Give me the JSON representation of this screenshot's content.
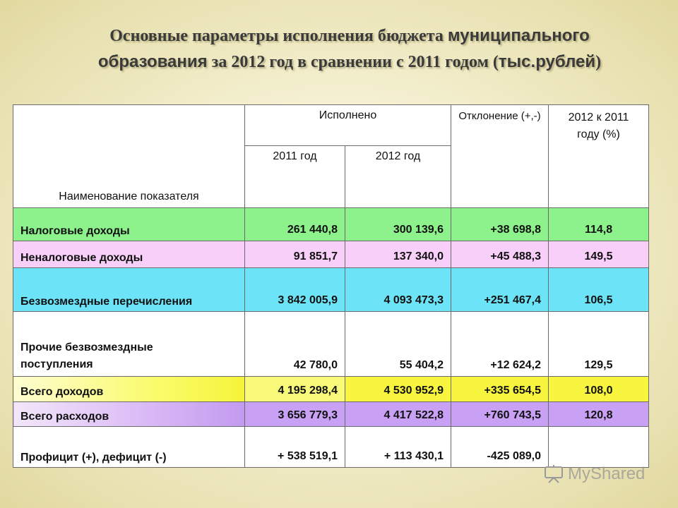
{
  "title": {
    "part1": "Основные параметры исполнения бюджета ",
    "part2": "муниципального образования",
    "part3": " за 2012 год в сравнении с 2011 годом (",
    "part4": "тыс.рублей",
    "part5": ")"
  },
  "table": {
    "headers": {
      "name": "Наименование  показателя",
      "executed": "Исполнено",
      "y2011": "2011 год",
      "y2012": "2012 год",
      "deviation": "Отклонение (+,-)",
      "ratio": "2012 к 2011 году (%)"
    },
    "rows": [
      {
        "name": "Налоговые доходы",
        "v2011": "261 440,8",
        "v2012": "300 139,6",
        "dev": "+38 698,8",
        "pct": "114,8"
      },
      {
        "name": "Неналоговые доходы",
        "v2011": "91 851,7",
        "v2012": "137 340,0",
        "dev": "+45 488,3",
        "pct": "149,5"
      },
      {
        "name": "Безвозмездные перечисления",
        "v2011": "3 842 005,9",
        "v2012": "4 093 473,3",
        "dev": "+251 467,4",
        "pct": "106,5"
      },
      {
        "name": "Прочие безвозмездные поступления",
        "v2011": "42 780,0",
        "v2012": "55 404,2",
        "dev": "+12 624,2",
        "pct": "129,5"
      },
      {
        "name": "Всего доходов",
        "v2011": "4 195 298,4",
        "v2012": "4 530 952,9",
        "dev": "+335 654,5",
        "pct": "108,0"
      },
      {
        "name": "Всего расходов",
        "v2011": "3 656 779,3",
        "v2012": "4 417 522,8",
        "dev": "+760 743,5",
        "pct": "120,8"
      },
      {
        "name": "Профицит (+), дефицит (-)",
        "v2011": "+ 538 519,1",
        "v2012": "+ 113 430,1",
        "dev": "-425 089,0",
        "pct": ""
      }
    ]
  },
  "watermark": "MyShared",
  "colors": {
    "green": "#8ef28c",
    "pink": "#f8cff8",
    "cyan": "#6ce3f7",
    "yellow": "#f8f53e",
    "purple": "#c8a1f4"
  }
}
